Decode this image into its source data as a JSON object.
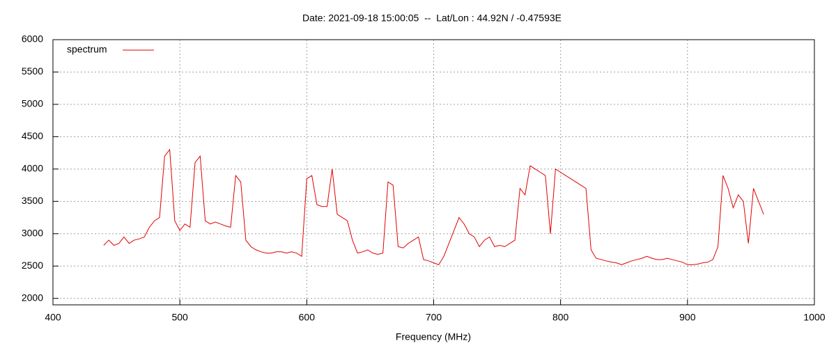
{
  "chart_data": {
    "type": "line",
    "title": "Date: 2021-09-18 15:00:05  --  Lat/Lon : 44.92N / -0.47593E",
    "x_label": "Frequency (MHz)",
    "xlim": [
      400,
      1000
    ],
    "xticks": [
      400,
      500,
      600,
      700,
      800,
      900,
      1000
    ],
    "ylim": [
      1900,
      6000
    ],
    "yticks": [
      2000,
      2500,
      3000,
      3500,
      4000,
      4500,
      5000,
      5500,
      6000
    ],
    "grid": true,
    "legend": "top-left",
    "x": [
      440,
      444,
      448,
      452,
      456,
      460,
      464,
      468,
      472,
      476,
      480,
      484,
      488,
      492,
      496,
      500,
      504,
      508,
      512,
      516,
      520,
      524,
      528,
      532,
      536,
      540,
      544,
      548,
      552,
      556,
      560,
      564,
      568,
      572,
      576,
      580,
      584,
      588,
      592,
      596,
      600,
      604,
      608,
      612,
      616,
      620,
      624,
      628,
      632,
      636,
      640,
      644,
      648,
      652,
      656,
      660,
      664,
      668,
      672,
      676,
      680,
      684,
      688,
      692,
      696,
      700,
      704,
      708,
      712,
      716,
      720,
      724,
      728,
      732,
      736,
      740,
      744,
      748,
      752,
      756,
      760,
      764,
      768,
      772,
      776,
      780,
      784,
      788,
      792,
      796,
      800,
      804,
      808,
      812,
      816,
      820,
      824,
      828,
      832,
      836,
      840,
      844,
      848,
      852,
      856,
      860,
      864,
      868,
      872,
      876,
      880,
      884,
      888,
      892,
      896,
      900,
      904,
      908,
      912,
      916,
      920,
      924,
      928,
      932,
      936,
      940,
      944,
      948,
      952,
      956,
      960
    ],
    "series": [
      {
        "name": "spectrum",
        "color": "#e00000",
        "values": [
          2820,
          2900,
          2820,
          2850,
          2950,
          2850,
          2900,
          2920,
          2950,
          3100,
          3200,
          3250,
          4200,
          4300,
          3200,
          3050,
          3150,
          3100,
          4100,
          4200,
          3200,
          3150,
          3180,
          3150,
          3120,
          3100,
          3900,
          3800,
          2900,
          2800,
          2750,
          2720,
          2700,
          2700,
          2720,
          2720,
          2700,
          2720,
          2700,
          2650,
          3850,
          3900,
          3450,
          3420,
          3420,
          4000,
          3300,
          3250,
          3200,
          2900,
          2700,
          2720,
          2750,
          2700,
          2680,
          2700,
          3800,
          3750,
          2800,
          2780,
          2850,
          2900,
          2950,
          2600,
          2580,
          2550,
          2520,
          2650,
          2850,
          3050,
          3250,
          3150,
          3000,
          2950,
          2800,
          2900,
          2950,
          2800,
          2820,
          2800,
          2850,
          2900,
          3700,
          3600,
          4050,
          4000,
          3950,
          3900,
          3000,
          4000,
          3950,
          3900,
          3850,
          3800,
          3750,
          3700,
          2750,
          2620,
          2600,
          2580,
          2560,
          2550,
          2520,
          2550,
          2580,
          2600,
          2620,
          2650,
          2620,
          2600,
          2600,
          2620,
          2600,
          2580,
          2560,
          2520,
          2520,
          2530,
          2550,
          2560,
          2600,
          2800,
          3900,
          3700,
          3400,
          3600,
          3500,
          2850,
          3700,
          3500,
          3300
        ]
      }
    ]
  }
}
